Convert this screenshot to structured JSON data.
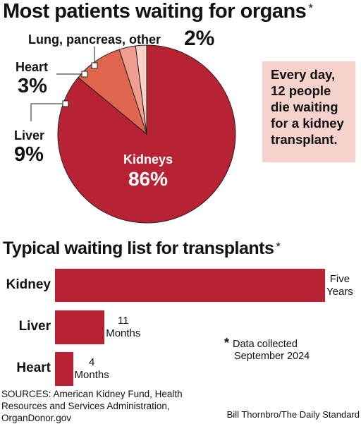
{
  "pie_title": "Most patients waiting for organs",
  "pie_title_mark": "*",
  "callout": "Every day, 12 people die waiting for a kidney transplant.",
  "bar_title": "Typical waiting list for transplants",
  "bar_title_mark": "*",
  "note": {
    "mark": "*",
    "line1": "Data collected",
    "line2": "September 2024"
  },
  "sources": "SOURCES: American Kidney Fund, Health Resources and Services Administration, OrganDonor.gov",
  "credit": "Bill Thornbro/The Daily Standard",
  "colors": {
    "kidney": "#b82333",
    "liver": "#e0654f",
    "heart": "#ee9d8e",
    "other": "#f7d0c8",
    "callout_bg": "#f6d2cc",
    "bar": "#b82333"
  },
  "chart_data": [
    {
      "type": "pie",
      "title": "Most patients waiting for organs",
      "slices": [
        {
          "label": "Kidneys",
          "value": 86,
          "display": "86%",
          "color": "#b82333"
        },
        {
          "label": "Liver",
          "value": 9,
          "display": "9%",
          "color": "#e0654f"
        },
        {
          "label": "Heart",
          "value": 3,
          "display": "3%",
          "color": "#ee9d8e"
        },
        {
          "label": "Lung, pancreas, other",
          "value": 2,
          "display": "2%",
          "color": "#f7d0c8"
        }
      ]
    },
    {
      "type": "bar",
      "orientation": "horizontal",
      "title": "Typical waiting list for transplants",
      "unit": "months",
      "categories": [
        "Kidney",
        "Liver",
        "Heart"
      ],
      "values": [
        60,
        11,
        4
      ],
      "value_labels": [
        [
          "Five",
          "Years"
        ],
        [
          "11",
          "Months"
        ],
        [
          "4",
          "Months"
        ]
      ]
    }
  ]
}
